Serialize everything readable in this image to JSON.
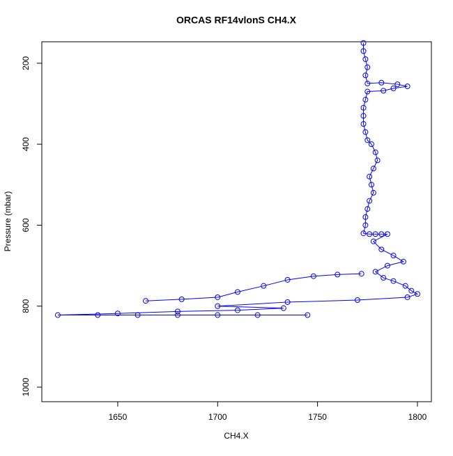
{
  "chart_data": {
    "type": "scatter",
    "title": "ORCAS RF14vlonS CH4.X",
    "xlabel": "CH4.X",
    "ylabel": "Pressure (mbar)",
    "xlim": [
      1612,
      1807
    ],
    "ylim": [
      1036,
      147
    ],
    "xticks": [
      1650,
      1700,
      1750,
      1800
    ],
    "yticks": [
      200,
      400,
      600,
      800,
      1000
    ],
    "series": [
      {
        "color": "#0000ff",
        "x": [
          1773,
          1773,
          1774,
          1775,
          1774,
          1775,
          1782,
          1790,
          1795,
          1788,
          1783,
          1775,
          1774,
          1773,
          1773,
          1773,
          1774,
          1775,
          1777,
          1779,
          1780,
          1778,
          1776,
          1777,
          1778,
          1776,
          1775,
          1774,
          1774,
          1773,
          1776,
          1779,
          1782,
          1785,
          1778,
          1782,
          1788,
          1793,
          1785,
          1779,
          1783,
          1788,
          1794,
          1797,
          1800,
          1795,
          1770,
          1735,
          1700,
          1733,
          1710,
          1680,
          1650,
          1620,
          1640,
          1660,
          1680,
          1700,
          1720,
          1745,
          null,
          1772,
          1760,
          1748,
          1735,
          1723,
          1710,
          1700,
          1682,
          1664
        ],
        "y": [
          150,
          170,
          190,
          210,
          230,
          250,
          248,
          252,
          257,
          262,
          268,
          270,
          290,
          310,
          330,
          350,
          370,
          390,
          400,
          420,
          440,
          460,
          480,
          500,
          520,
          540,
          560,
          580,
          600,
          620,
          622,
          622,
          622,
          622,
          640,
          660,
          675,
          690,
          700,
          715,
          730,
          738,
          750,
          762,
          770,
          778,
          785,
          790,
          800,
          805,
          810,
          813,
          818,
          822,
          822,
          822,
          822,
          822,
          822,
          822,
          null,
          720,
          722,
          726,
          735,
          750,
          765,
          778,
          783,
          787
        ]
      }
    ]
  }
}
